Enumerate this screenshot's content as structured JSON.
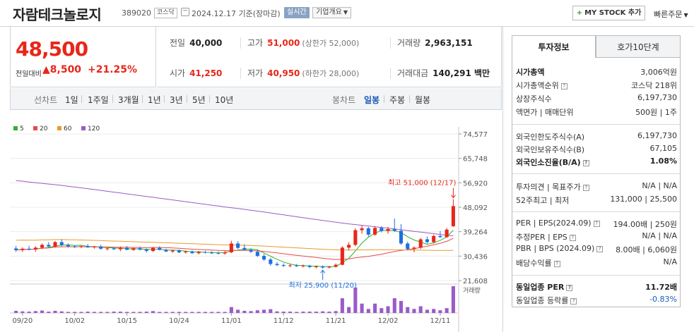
{
  "header": {
    "company": "자람테크놀로지",
    "code": "389020",
    "market_badge": "코스닥",
    "date_text": "2024.12.17  기준(장마감)",
    "realtime_label": "실시간",
    "company_info_label": "기업개요",
    "mystock_label": "MY STOCK 추가",
    "quick_order_label": "빠른주문"
  },
  "quote": {
    "price": "48,500",
    "change_label": "전일대비",
    "change_value": "▲8,500",
    "change_pct": "+21.25%",
    "stats": {
      "prev": {
        "label": "전일",
        "value": "40,000"
      },
      "high": {
        "label": "고가",
        "value": "51,000",
        "sub": "(상한가 52,000)"
      },
      "volume": {
        "label": "거래량",
        "value": "2,963,151"
      },
      "open": {
        "label": "시가",
        "value": "41,250"
      },
      "low": {
        "label": "저가",
        "value": "40,950",
        "sub": "(하한가 28,000)"
      },
      "amount": {
        "label": "거래대금",
        "value": "140,291 백만"
      }
    }
  },
  "toolbar": {
    "line_label": "선차트",
    "periods": [
      "1일",
      "1주일",
      "3개월",
      "1년",
      "3년",
      "5년",
      "10년"
    ],
    "candle_label": "봉차트",
    "candle_types": [
      "일봉",
      "주봉",
      "월봉"
    ],
    "active_candle": "일봉"
  },
  "chart_data": {
    "type": "candlestick",
    "legend": [
      {
        "name": "5",
        "color": "#2db32d"
      },
      {
        "name": "20",
        "color": "#e84a4a"
      },
      {
        "name": "60",
        "color": "#e89a2e"
      },
      {
        "name": "120",
        "color": "#9a5bc8"
      }
    ],
    "y_ticks": [
      74577,
      65748,
      56920,
      48092,
      39264,
      30436,
      21608
    ],
    "y_tick_labels": [
      "74,577",
      "65,748",
      "56,920",
      "48,092",
      "39,264",
      "30,436",
      "21,608"
    ],
    "x_tick_labels": [
      "09/20",
      "10/02",
      "10/15",
      "10/24",
      "11/01",
      "11/12",
      "11/21",
      "12/02",
      "12/11"
    ],
    "x_tick_index": [
      1,
      9,
      17,
      25,
      33,
      41,
      49,
      57,
      65
    ],
    "max_annotation": "최고 51,000 (12/17)",
    "min_annotation": "최저 25,900 (11/20)",
    "volume_label": "거래량",
    "candles": [
      {
        "o": 33200,
        "h": 34100,
        "l": 32000,
        "c": 32600
      },
      {
        "o": 32600,
        "h": 33600,
        "l": 31900,
        "c": 33100
      },
      {
        "o": 33100,
        "h": 34200,
        "l": 32500,
        "c": 32800
      },
      {
        "o": 32800,
        "h": 34000,
        "l": 32000,
        "c": 33500
      },
      {
        "o": 33500,
        "h": 35000,
        "l": 33000,
        "c": 34500
      },
      {
        "o": 34500,
        "h": 35500,
        "l": 33600,
        "c": 33900
      },
      {
        "o": 33900,
        "h": 35900,
        "l": 33500,
        "c": 35500
      },
      {
        "o": 35500,
        "h": 36500,
        "l": 34000,
        "c": 34500
      },
      {
        "o": 34500,
        "h": 35000,
        "l": 33500,
        "c": 34000
      },
      {
        "o": 34000,
        "h": 34300,
        "l": 33300,
        "c": 33700
      },
      {
        "o": 33700,
        "h": 34400,
        "l": 33300,
        "c": 34000
      },
      {
        "o": 34000,
        "h": 34800,
        "l": 33400,
        "c": 33600
      },
      {
        "o": 33600,
        "h": 34100,
        "l": 33100,
        "c": 33900
      },
      {
        "o": 33900,
        "h": 34500,
        "l": 32800,
        "c": 33100
      },
      {
        "o": 33100,
        "h": 33500,
        "l": 32500,
        "c": 33200
      },
      {
        "o": 33200,
        "h": 33800,
        "l": 32700,
        "c": 32900
      },
      {
        "o": 32900,
        "h": 33900,
        "l": 32200,
        "c": 33400
      },
      {
        "o": 33400,
        "h": 34100,
        "l": 32600,
        "c": 32700
      },
      {
        "o": 32700,
        "h": 33600,
        "l": 32300,
        "c": 33300
      },
      {
        "o": 33300,
        "h": 33900,
        "l": 32400,
        "c": 32800
      },
      {
        "o": 32800,
        "h": 33200,
        "l": 31800,
        "c": 32300
      },
      {
        "o": 32300,
        "h": 33700,
        "l": 31900,
        "c": 33400
      },
      {
        "o": 33400,
        "h": 34000,
        "l": 32500,
        "c": 32700
      },
      {
        "o": 32700,
        "h": 33100,
        "l": 31900,
        "c": 32100
      },
      {
        "o": 32100,
        "h": 32700,
        "l": 31600,
        "c": 32500
      },
      {
        "o": 32500,
        "h": 32800,
        "l": 31500,
        "c": 31800
      },
      {
        "o": 31800,
        "h": 32400,
        "l": 31300,
        "c": 32100
      },
      {
        "o": 32100,
        "h": 32500,
        "l": 31200,
        "c": 31500
      },
      {
        "o": 31500,
        "h": 32300,
        "l": 31000,
        "c": 31900
      },
      {
        "o": 31900,
        "h": 32400,
        "l": 31400,
        "c": 31700
      },
      {
        "o": 31700,
        "h": 32200,
        "l": 31200,
        "c": 31600
      },
      {
        "o": 31600,
        "h": 32100,
        "l": 31000,
        "c": 31400
      },
      {
        "o": 31400,
        "h": 32300,
        "l": 30900,
        "c": 31800
      },
      {
        "o": 31800,
        "h": 36000,
        "l": 31500,
        "c": 35000
      },
      {
        "o": 35000,
        "h": 35800,
        "l": 33000,
        "c": 33400
      },
      {
        "o": 33400,
        "h": 34700,
        "l": 32400,
        "c": 32700
      },
      {
        "o": 32700,
        "h": 33200,
        "l": 31600,
        "c": 32000
      },
      {
        "o": 32000,
        "h": 32600,
        "l": 30100,
        "c": 30500
      },
      {
        "o": 30500,
        "h": 31200,
        "l": 28700,
        "c": 29200
      },
      {
        "o": 29200,
        "h": 29800,
        "l": 27000,
        "c": 27600
      },
      {
        "o": 27600,
        "h": 28300,
        "l": 26800,
        "c": 27200
      },
      {
        "o": 27200,
        "h": 27800,
        "l": 26500,
        "c": 26900
      },
      {
        "o": 26900,
        "h": 27500,
        "l": 26400,
        "c": 27100
      },
      {
        "o": 27100,
        "h": 27600,
        "l": 26500,
        "c": 26800
      },
      {
        "o": 26800,
        "h": 27400,
        "l": 26300,
        "c": 27000
      },
      {
        "o": 27000,
        "h": 27300,
        "l": 26100,
        "c": 26500
      },
      {
        "o": 26500,
        "h": 27000,
        "l": 26000,
        "c": 26700
      },
      {
        "o": 26700,
        "h": 27100,
        "l": 25900,
        "c": 26300
      },
      {
        "o": 26300,
        "h": 26900,
        "l": 26000,
        "c": 26600
      },
      {
        "o": 26600,
        "h": 27800,
        "l": 26300,
        "c": 27300
      },
      {
        "o": 27300,
        "h": 34000,
        "l": 27100,
        "c": 33500
      },
      {
        "o": 33500,
        "h": 35500,
        "l": 32500,
        "c": 34500
      },
      {
        "o": 34500,
        "h": 40500,
        "l": 34000,
        "c": 39800
      },
      {
        "o": 39800,
        "h": 41500,
        "l": 38500,
        "c": 40500
      },
      {
        "o": 40500,
        "h": 41000,
        "l": 37500,
        "c": 38200
      },
      {
        "o": 38200,
        "h": 41200,
        "l": 37800,
        "c": 40600
      },
      {
        "o": 40600,
        "h": 41300,
        "l": 39000,
        "c": 39500
      },
      {
        "o": 39500,
        "h": 41000,
        "l": 38500,
        "c": 40200
      },
      {
        "o": 40200,
        "h": 44000,
        "l": 39200,
        "c": 39600
      },
      {
        "o": 39600,
        "h": 42000,
        "l": 34500,
        "c": 35000
      },
      {
        "o": 35000,
        "h": 35600,
        "l": 32500,
        "c": 33000
      },
      {
        "o": 33000,
        "h": 34000,
        "l": 31800,
        "c": 33500
      },
      {
        "o": 33500,
        "h": 37000,
        "l": 33000,
        "c": 36500
      },
      {
        "o": 36500,
        "h": 37500,
        "l": 35000,
        "c": 35500
      },
      {
        "o": 35500,
        "h": 38200,
        "l": 35000,
        "c": 37700
      },
      {
        "o": 37700,
        "h": 39500,
        "l": 37000,
        "c": 37300
      },
      {
        "o": 37300,
        "h": 40600,
        "l": 37000,
        "c": 40000
      },
      {
        "o": 41250,
        "h": 51000,
        "l": 40950,
        "c": 48500
      }
    ],
    "volume": [
      0.08,
      0.06,
      0.05,
      0.07,
      0.09,
      0.05,
      0.08,
      0.06,
      0.04,
      0.04,
      0.04,
      0.05,
      0.04,
      0.04,
      0.04,
      0.05,
      0.05,
      0.04,
      0.04,
      0.04,
      0.05,
      0.07,
      0.04,
      0.04,
      0.04,
      0.04,
      0.04,
      0.04,
      0.04,
      0.04,
      0.04,
      0.04,
      0.04,
      0.22,
      0.12,
      0.08,
      0.07,
      0.1,
      0.12,
      0.14,
      0.06,
      0.05,
      0.05,
      0.04,
      0.05,
      0.05,
      0.05,
      0.06,
      0.05,
      0.07,
      0.55,
      0.22,
      0.95,
      0.35,
      0.15,
      0.35,
      0.18,
      0.25,
      0.55,
      0.45,
      0.22,
      0.15,
      0.25,
      0.12,
      0.15,
      0.1,
      0.18,
      1.0
    ]
  },
  "right_panel": {
    "tab_invest": "투자정보",
    "tab_order": "호가10단계",
    "rows": [
      {
        "label": "시가총액",
        "value": "3,006억원",
        "bold_label": true
      },
      {
        "label": "시가총액순위",
        "value": "코스닥 218위",
        "info": true
      },
      {
        "label": "상장주식수",
        "value": "6,197,730"
      },
      {
        "label": "액면가 | 매매단위",
        "value": "500원 | 1주"
      },
      {
        "label": "외국인한도주식수(A)",
        "value": "6,197,730"
      },
      {
        "label": "외국인보유주식수(B)",
        "value": "67,105"
      },
      {
        "label": "외국인소진율(B/A)",
        "value": "1.08%",
        "bold_label": true,
        "bold_value": true,
        "info": true
      },
      {
        "label": "투자의견 | 목표주가",
        "value": "N/A | N/A",
        "info": true
      },
      {
        "label": "52주최고 | 최저",
        "value": "131,000 | 25,500"
      },
      {
        "label": "PER | EPS(2024.09)",
        "value": "194.00배 | 250원",
        "info": true
      },
      {
        "label": "추정PER | EPS",
        "value": "N/A | N/A",
        "info": true
      },
      {
        "label": "PBR | BPS (2024.09)",
        "value": "8.00배 | 6,060원",
        "info": true
      },
      {
        "label": "배당수익률",
        "value": "N/A",
        "info": true
      },
      {
        "label": "동일업종 PER",
        "value": "11.72배",
        "bold_label": true,
        "bold_value": true,
        "info": true
      },
      {
        "label": "동일업종 등락률",
        "value": "-0.83%",
        "info": true,
        "blue_value": true
      }
    ]
  }
}
